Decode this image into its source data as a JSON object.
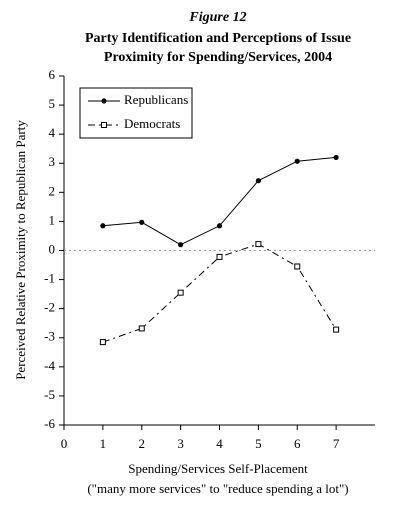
{
  "chart_data": {
    "type": "line",
    "figure_label": "Figure 12",
    "title": [
      "Party Identification and Perceptions of Issue",
      "Proximity for Spending/Services, 2004"
    ],
    "ylabel": "Perceived Relative Proximity to Republican Party",
    "xlabel": "Spending/Services Self-Placement",
    "xlabel_note": "(\"many more services\" to \"reduce spending a lot\")",
    "x": [
      1,
      2,
      3,
      4,
      5,
      6,
      7
    ],
    "series": [
      {
        "name": "Republicans",
        "color": "#000000",
        "dash": "solid",
        "marker": "filled-circle",
        "values": [
          0.85,
          0.97,
          0.2,
          0.85,
          2.4,
          3.07,
          3.2
        ]
      },
      {
        "name": "Democrats",
        "color": "#000000",
        "dash": "dash-dot",
        "marker": "open-square",
        "values": [
          -3.15,
          -2.68,
          -1.45,
          -0.22,
          0.22,
          -0.55,
          -2.72
        ]
      }
    ],
    "xlim": [
      0,
      8
    ],
    "xticks": [
      0,
      1,
      2,
      3,
      4,
      5,
      6,
      7
    ],
    "ylim": [
      -6,
      6
    ],
    "yticks": [
      -6,
      -5,
      -4,
      -3,
      -2,
      -1,
      0,
      1,
      2,
      3,
      4,
      5,
      6
    ],
    "reference_line": 0,
    "legend": "upper-left"
  }
}
